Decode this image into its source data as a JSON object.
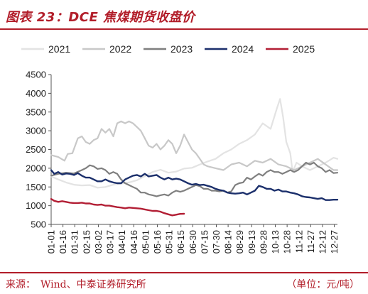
{
  "header": {
    "title": "图表 23：DCE 焦煤期货收盘价"
  },
  "footer": {
    "source": "来源：　Wind、中泰证券研究所",
    "unit": "（单位：元/吨）"
  },
  "chart_data": {
    "type": "line",
    "title": "图表 23：DCE 焦煤期货收盘价",
    "xlabel": "",
    "ylabel": "",
    "ylim": [
      500,
      4500
    ],
    "yticks": [
      500,
      1000,
      1500,
      2000,
      2500,
      3000,
      3500,
      4000,
      4500
    ],
    "xlim": [
      1,
      365
    ],
    "x_ticks": [
      {
        "label": "01-01",
        "day": 1
      },
      {
        "label": "01-16",
        "day": 16
      },
      {
        "label": "01-31",
        "day": 31
      },
      {
        "label": "02-15",
        "day": 46
      },
      {
        "label": "03-02",
        "day": 61
      },
      {
        "label": "03-17",
        "day": 76
      },
      {
        "label": "04-01",
        "day": 91
      },
      {
        "label": "04-16",
        "day": 106
      },
      {
        "label": "05-01",
        "day": 121
      },
      {
        "label": "05-16",
        "day": 136
      },
      {
        "label": "05-31",
        "day": 151
      },
      {
        "label": "06-15",
        "day": 166
      },
      {
        "label": "06-30",
        "day": 181
      },
      {
        "label": "07-15",
        "day": 196
      },
      {
        "label": "07-30",
        "day": 211
      },
      {
        "label": "08-14",
        "day": 226
      },
      {
        "label": "08-29",
        "day": 241
      },
      {
        "label": "09-13",
        "day": 256
      },
      {
        "label": "09-28",
        "day": 271
      },
      {
        "label": "10-13",
        "day": 286
      },
      {
        "label": "10-28",
        "day": 301
      },
      {
        "label": "11-12",
        "day": 316
      },
      {
        "label": "11-27",
        "day": 331
      },
      {
        "label": "12-12",
        "day": 346
      },
      {
        "label": "12-27",
        "day": 361
      }
    ],
    "grid": false,
    "legend": "top",
    "series": [
      {
        "name": "2021",
        "color": "#e3e3e3",
        "width": 2.2,
        "points": [
          [
            1,
            1780
          ],
          [
            10,
            1700
          ],
          [
            20,
            1620
          ],
          [
            30,
            1560
          ],
          [
            40,
            1540
          ],
          [
            50,
            1550
          ],
          [
            60,
            1480
          ],
          [
            70,
            1500
          ],
          [
            80,
            1560
          ],
          [
            90,
            1590
          ],
          [
            100,
            1620
          ],
          [
            110,
            1680
          ],
          [
            120,
            1790
          ],
          [
            130,
            1900
          ],
          [
            140,
            1960
          ],
          [
            150,
            1880
          ],
          [
            160,
            1910
          ],
          [
            170,
            1990
          ],
          [
            180,
            2010
          ],
          [
            190,
            2100
          ],
          [
            200,
            2180
          ],
          [
            210,
            2250
          ],
          [
            220,
            2400
          ],
          [
            230,
            2500
          ],
          [
            240,
            2650
          ],
          [
            250,
            2750
          ],
          [
            260,
            2900
          ],
          [
            270,
            3200
          ],
          [
            280,
            3050
          ],
          [
            288,
            3600
          ],
          [
            292,
            3850
          ],
          [
            296,
            3350
          ],
          [
            300,
            2700
          ],
          [
            305,
            2400
          ],
          [
            308,
            1900
          ],
          [
            313,
            2150
          ],
          [
            320,
            2050
          ],
          [
            330,
            1950
          ],
          [
            340,
            2050
          ],
          [
            350,
            2150
          ],
          [
            360,
            2280
          ],
          [
            365,
            2250
          ]
        ]
      },
      {
        "name": "2022",
        "color": "#c8c8c8",
        "width": 2.2,
        "points": [
          [
            1,
            2350
          ],
          [
            10,
            2300
          ],
          [
            18,
            2200
          ],
          [
            22,
            2380
          ],
          [
            28,
            2400
          ],
          [
            35,
            2800
          ],
          [
            40,
            2850
          ],
          [
            45,
            2700
          ],
          [
            50,
            2650
          ],
          [
            55,
            2750
          ],
          [
            60,
            2800
          ],
          [
            65,
            3050
          ],
          [
            70,
            2950
          ],
          [
            75,
            3050
          ],
          [
            80,
            2850
          ],
          [
            85,
            3200
          ],
          [
            90,
            3250
          ],
          [
            95,
            3200
          ],
          [
            100,
            3250
          ],
          [
            105,
            3200
          ],
          [
            110,
            3100
          ],
          [
            115,
            3000
          ],
          [
            120,
            2800
          ],
          [
            125,
            2600
          ],
          [
            130,
            2550
          ],
          [
            135,
            2650
          ],
          [
            140,
            2500
          ],
          [
            145,
            2600
          ],
          [
            150,
            2750
          ],
          [
            155,
            2650
          ],
          [
            160,
            2400
          ],
          [
            165,
            2600
          ],
          [
            170,
            2900
          ],
          [
            175,
            2700
          ],
          [
            180,
            2500
          ],
          [
            185,
            2400
          ],
          [
            190,
            2250
          ],
          [
            195,
            2100
          ],
          [
            200,
            2050
          ],
          [
            210,
            2000
          ],
          [
            220,
            1950
          ],
          [
            230,
            2100
          ],
          [
            240,
            2150
          ],
          [
            250,
            2050
          ],
          [
            260,
            2200
          ],
          [
            270,
            2150
          ],
          [
            280,
            2250
          ],
          [
            290,
            2100
          ],
          [
            300,
            2050
          ],
          [
            310,
            1950
          ],
          [
            320,
            2050
          ],
          [
            330,
            2150
          ],
          [
            340,
            2250
          ],
          [
            350,
            2100
          ],
          [
            360,
            1950
          ],
          [
            365,
            1950
          ]
        ]
      },
      {
        "name": "2023",
        "color": "#7f7f7f",
        "width": 2.2,
        "points": [
          [
            1,
            1800
          ],
          [
            10,
            1850
          ],
          [
            20,
            1880
          ],
          [
            30,
            1860
          ],
          [
            40,
            1950
          ],
          [
            45,
            2000
          ],
          [
            50,
            2080
          ],
          [
            55,
            2050
          ],
          [
            60,
            1980
          ],
          [
            65,
            2000
          ],
          [
            70,
            1950
          ],
          [
            75,
            1850
          ],
          [
            80,
            1900
          ],
          [
            85,
            1850
          ],
          [
            90,
            1700
          ],
          [
            95,
            1600
          ],
          [
            100,
            1550
          ],
          [
            105,
            1500
          ],
          [
            110,
            1450
          ],
          [
            115,
            1350
          ],
          [
            120,
            1350
          ],
          [
            125,
            1300
          ],
          [
            130,
            1280
          ],
          [
            135,
            1250
          ],
          [
            140,
            1280
          ],
          [
            145,
            1300
          ],
          [
            150,
            1270
          ],
          [
            155,
            1350
          ],
          [
            160,
            1400
          ],
          [
            165,
            1370
          ],
          [
            170,
            1400
          ],
          [
            175,
            1450
          ],
          [
            180,
            1500
          ],
          [
            185,
            1550
          ],
          [
            190,
            1520
          ],
          [
            195,
            1450
          ],
          [
            200,
            1450
          ],
          [
            205,
            1400
          ],
          [
            210,
            1400
          ],
          [
            215,
            1380
          ],
          [
            220,
            1400
          ],
          [
            225,
            1350
          ],
          [
            230,
            1380
          ],
          [
            235,
            1550
          ],
          [
            240,
            1600
          ],
          [
            245,
            1620
          ],
          [
            250,
            1750
          ],
          [
            255,
            1700
          ],
          [
            260,
            1780
          ],
          [
            265,
            1850
          ],
          [
            270,
            1800
          ],
          [
            275,
            1900
          ],
          [
            280,
            1950
          ],
          [
            285,
            1900
          ],
          [
            290,
            1900
          ],
          [
            295,
            1850
          ],
          [
            300,
            1900
          ],
          [
            305,
            1950
          ],
          [
            310,
            1900
          ],
          [
            315,
            1950
          ],
          [
            320,
            2050
          ],
          [
            325,
            2150
          ],
          [
            330,
            2100
          ],
          [
            335,
            2150
          ],
          [
            340,
            2050
          ],
          [
            345,
            2000
          ],
          [
            350,
            1900
          ],
          [
            355,
            1950
          ],
          [
            360,
            1870
          ],
          [
            365,
            1880
          ]
        ]
      },
      {
        "name": "2024",
        "color": "#1b2f6b",
        "width": 2.4,
        "points": [
          [
            1,
            1950
          ],
          [
            5,
            1850
          ],
          [
            10,
            1900
          ],
          [
            15,
            1830
          ],
          [
            20,
            1860
          ],
          [
            25,
            1850
          ],
          [
            30,
            1820
          ],
          [
            35,
            1870
          ],
          [
            40,
            1800
          ],
          [
            45,
            1750
          ],
          [
            50,
            1750
          ],
          [
            55,
            1700
          ],
          [
            60,
            1650
          ],
          [
            65,
            1650
          ],
          [
            70,
            1700
          ],
          [
            75,
            1650
          ],
          [
            80,
            1620
          ],
          [
            85,
            1600
          ],
          [
            90,
            1600
          ],
          [
            95,
            1700
          ],
          [
            100,
            1750
          ],
          [
            105,
            1800
          ],
          [
            110,
            1820
          ],
          [
            115,
            1780
          ],
          [
            120,
            1850
          ],
          [
            125,
            1780
          ],
          [
            130,
            1800
          ],
          [
            135,
            1820
          ],
          [
            140,
            1750
          ],
          [
            145,
            1700
          ],
          [
            150,
            1750
          ],
          [
            155,
            1700
          ],
          [
            160,
            1720
          ],
          [
            165,
            1700
          ],
          [
            170,
            1650
          ],
          [
            175,
            1600
          ],
          [
            180,
            1560
          ],
          [
            185,
            1580
          ],
          [
            190,
            1550
          ],
          [
            195,
            1560
          ],
          [
            200,
            1530
          ],
          [
            205,
            1500
          ],
          [
            210,
            1450
          ],
          [
            215,
            1420
          ],
          [
            220,
            1400
          ],
          [
            225,
            1350
          ],
          [
            230,
            1330
          ],
          [
            235,
            1320
          ],
          [
            240,
            1330
          ],
          [
            245,
            1350
          ],
          [
            250,
            1300
          ],
          [
            255,
            1350
          ],
          [
            260,
            1400
          ],
          [
            265,
            1530
          ],
          [
            270,
            1500
          ],
          [
            275,
            1450
          ],
          [
            280,
            1450
          ],
          [
            285,
            1400
          ],
          [
            290,
            1430
          ],
          [
            295,
            1380
          ],
          [
            300,
            1380
          ],
          [
            305,
            1350
          ],
          [
            310,
            1330
          ],
          [
            315,
            1300
          ],
          [
            320,
            1250
          ],
          [
            325,
            1230
          ],
          [
            330,
            1220
          ],
          [
            335,
            1200
          ],
          [
            340,
            1180
          ],
          [
            345,
            1200
          ],
          [
            350,
            1150
          ],
          [
            355,
            1150
          ],
          [
            360,
            1160
          ],
          [
            365,
            1160
          ]
        ]
      },
      {
        "name": "2025",
        "color": "#b21e34",
        "width": 2.4,
        "points": [
          [
            1,
            1180
          ],
          [
            5,
            1130
          ],
          [
            10,
            1100
          ],
          [
            15,
            1120
          ],
          [
            20,
            1100
          ],
          [
            25,
            1080
          ],
          [
            30,
            1070
          ],
          [
            35,
            1070
          ],
          [
            40,
            1080
          ],
          [
            45,
            1060
          ],
          [
            50,
            1060
          ],
          [
            55,
            1030
          ],
          [
            60,
            1020
          ],
          [
            65,
            1030
          ],
          [
            70,
            1000
          ],
          [
            75,
            1000
          ],
          [
            80,
            980
          ],
          [
            85,
            960
          ],
          [
            90,
            950
          ],
          [
            95,
            930
          ],
          [
            100,
            950
          ],
          [
            105,
            940
          ],
          [
            110,
            930
          ],
          [
            115,
            920
          ],
          [
            120,
            900
          ],
          [
            125,
            880
          ],
          [
            130,
            860
          ],
          [
            135,
            860
          ],
          [
            140,
            840
          ],
          [
            145,
            800
          ],
          [
            150,
            770
          ],
          [
            155,
            740
          ],
          [
            160,
            760
          ],
          [
            165,
            780
          ],
          [
            170,
            785
          ]
        ]
      }
    ]
  }
}
